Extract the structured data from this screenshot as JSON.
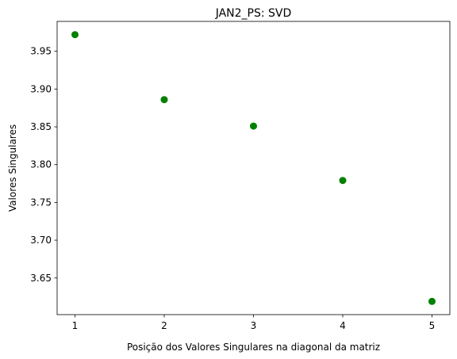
{
  "chart_data": {
    "type": "scatter",
    "title": "JAN2_PS: SVD",
    "xlabel": "Posição dos Valores Singulares na diagonal da matriz",
    "ylabel": "Valores Singulares",
    "x": [
      1,
      2,
      3,
      4,
      5
    ],
    "y": [
      3.972,
      3.886,
      3.851,
      3.779,
      3.619
    ],
    "xlim": [
      0.8,
      5.2
    ],
    "ylim": [
      3.6015,
      3.9895
    ],
    "xticks": [
      1,
      2,
      3,
      4,
      5
    ],
    "xtick_labels": [
      "1",
      "2",
      "3",
      "4",
      "5"
    ],
    "yticks": [
      3.65,
      3.7,
      3.75,
      3.8,
      3.85,
      3.9,
      3.95
    ],
    "ytick_labels": [
      "3.65",
      "3.70",
      "3.75",
      "3.80",
      "3.85",
      "3.90",
      "3.95"
    ],
    "marker_color": "#008000",
    "grid": false,
    "legend": "none"
  }
}
